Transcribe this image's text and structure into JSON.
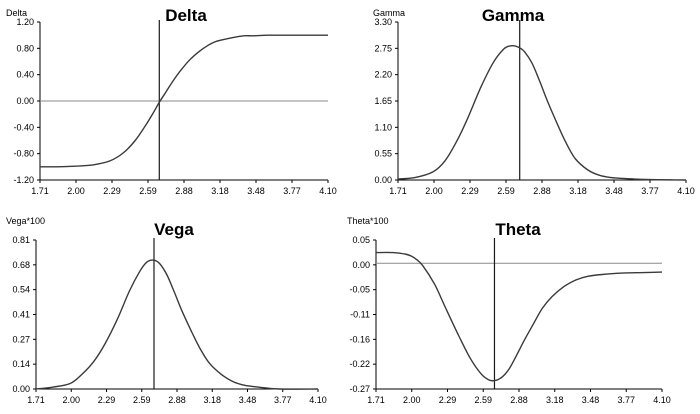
{
  "chart_data": [
    {
      "type": "line",
      "title": "Delta",
      "ylabel": "Delta",
      "xlabel": "",
      "xlim": [
        1.71,
        4.1
      ],
      "ylim": [
        -1.2,
        1.2
      ],
      "xticks": [
        "1.71",
        "2.00",
        "2.29",
        "2.59",
        "2.88",
        "3.18",
        "3.48",
        "3.77",
        "4.10"
      ],
      "yticks": [
        "-1.20",
        "-0.80",
        "-0.40",
        "0.00",
        "0.40",
        "0.80",
        "1.20"
      ],
      "zero_line": 0,
      "strike_x": 2.7,
      "series": [
        {
          "name": "Delta",
          "x": [
            1.71,
            1.85,
            2.0,
            2.15,
            2.29,
            2.4,
            2.5,
            2.59,
            2.65,
            2.7,
            2.76,
            2.82,
            2.88,
            2.95,
            3.03,
            3.1,
            3.18,
            3.3,
            3.4,
            3.48,
            3.6,
            3.77,
            3.9,
            4.1
          ],
          "y": [
            -1.0,
            -1.0,
            -0.99,
            -0.97,
            -0.91,
            -0.79,
            -0.6,
            -0.36,
            -0.18,
            -0.02,
            0.15,
            0.32,
            0.47,
            0.62,
            0.75,
            0.84,
            0.91,
            0.96,
            0.99,
            0.99,
            1.0,
            1.0,
            1.0,
            1.0
          ]
        }
      ]
    },
    {
      "type": "line",
      "title": "Gamma",
      "ylabel": "Gamma",
      "xlabel": "",
      "xlim": [
        1.71,
        4.1
      ],
      "ylim": [
        0.0,
        3.3
      ],
      "xticks": [
        "1.71",
        "2.00",
        "2.29",
        "2.59",
        "2.88",
        "3.18",
        "3.48",
        "3.77",
        "4.10"
      ],
      "yticks": [
        "0.00",
        "0.55",
        "1.10",
        "1.65",
        "2.20",
        "2.75",
        "3.30"
      ],
      "strike_x": 2.72,
      "series": [
        {
          "name": "Gamma",
          "x": [
            1.71,
            1.85,
            2.0,
            2.1,
            2.2,
            2.29,
            2.4,
            2.5,
            2.59,
            2.64,
            2.68,
            2.72,
            2.76,
            2.82,
            2.88,
            2.95,
            3.03,
            3.1,
            3.18,
            3.28,
            3.38,
            3.48,
            3.6,
            3.77,
            4.1
          ],
          "y": [
            0.02,
            0.05,
            0.17,
            0.4,
            0.82,
            1.3,
            1.95,
            2.45,
            2.74,
            2.8,
            2.8,
            2.76,
            2.68,
            2.45,
            2.1,
            1.65,
            1.18,
            0.8,
            0.45,
            0.22,
            0.1,
            0.05,
            0.03,
            0.01,
            0.0
          ]
        }
      ]
    },
    {
      "type": "line",
      "title": "Vega",
      "ylabel": "Vega*100",
      "xlabel": "",
      "xlim": [
        1.71,
        4.1
      ],
      "ylim": [
        0.0,
        0.81
      ],
      "xticks": [
        "1.71",
        "2.00",
        "2.29",
        "2.59",
        "2.88",
        "3.18",
        "3.48",
        "3.77",
        "4.10"
      ],
      "yticks": [
        "0.00",
        "0.14",
        "0.27",
        "0.41",
        "0.54",
        "0.68",
        "0.81"
      ],
      "strike_x": 2.71,
      "series": [
        {
          "name": "Vega*100",
          "x": [
            1.71,
            1.85,
            2.0,
            2.1,
            2.2,
            2.29,
            2.4,
            2.5,
            2.59,
            2.65,
            2.71,
            2.76,
            2.82,
            2.88,
            2.95,
            3.03,
            3.1,
            3.18,
            3.28,
            3.38,
            3.48,
            3.6,
            3.77,
            4.1
          ],
          "y": [
            0.0,
            0.01,
            0.03,
            0.08,
            0.15,
            0.24,
            0.38,
            0.53,
            0.64,
            0.69,
            0.7,
            0.68,
            0.62,
            0.53,
            0.42,
            0.31,
            0.22,
            0.14,
            0.08,
            0.04,
            0.02,
            0.01,
            0.0,
            0.0
          ]
        }
      ]
    },
    {
      "type": "line",
      "title": "Theta",
      "ylabel": "Theta*100",
      "xlabel": "",
      "xlim": [
        1.71,
        4.1
      ],
      "ylim": [
        -0.27,
        0.05
      ],
      "xticks": [
        "1.71",
        "2.00",
        "2.29",
        "2.59",
        "2.88",
        "3.18",
        "3.48",
        "3.77",
        "4.10"
      ],
      "yticks": [
        "-0.27",
        "-0.22",
        "-0.16",
        "-0.11",
        "-0.05",
        "0.00",
        "0.05"
      ],
      "zero_line": 0,
      "strike_x": 2.7,
      "series": [
        {
          "name": "Theta*100",
          "x": [
            1.71,
            1.85,
            1.95,
            2.0,
            2.05,
            2.1,
            2.2,
            2.29,
            2.4,
            2.5,
            2.59,
            2.65,
            2.7,
            2.76,
            2.82,
            2.88,
            2.95,
            3.03,
            3.1,
            3.18,
            3.28,
            3.38,
            3.48,
            3.6,
            3.77,
            3.95,
            4.1
          ],
          "y": [
            0.023,
            0.023,
            0.02,
            0.016,
            0.008,
            -0.005,
            -0.045,
            -0.095,
            -0.155,
            -0.205,
            -0.238,
            -0.25,
            -0.252,
            -0.245,
            -0.228,
            -0.2,
            -0.165,
            -0.128,
            -0.097,
            -0.072,
            -0.05,
            -0.036,
            -0.028,
            -0.024,
            -0.021,
            -0.02,
            -0.019
          ]
        }
      ]
    }
  ]
}
